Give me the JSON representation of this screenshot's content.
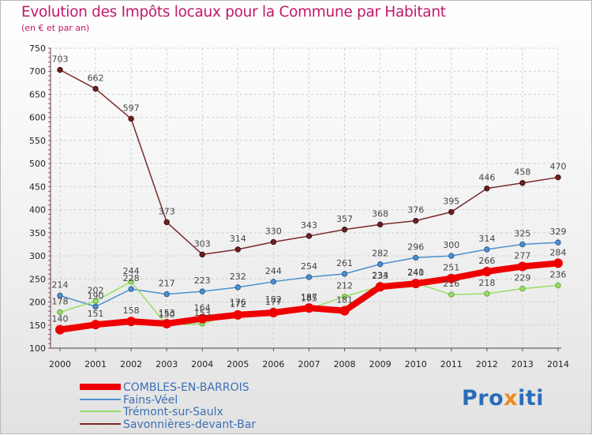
{
  "title": "Evolution des Impôts locaux pour la Commune par Habitant",
  "subtitle": "(en € et par an)",
  "logo": {
    "text_before": "Pro",
    "accent_char": "x",
    "text_after": "iti",
    "color": "#2b6cb8",
    "accent_color": "#f08a1c"
  },
  "chart_data": {
    "type": "line",
    "title": "Evolution des Impôts locaux pour la Commune par Habitant",
    "ylabel": "(en € et par an)",
    "xlabel": "",
    "ylim": [
      100,
      750
    ],
    "yticks": [
      100,
      150,
      200,
      250,
      300,
      350,
      400,
      450,
      500,
      550,
      600,
      650,
      700,
      750
    ],
    "categories": [
      "2000",
      "2001",
      "2002",
      "2003",
      "2004",
      "2005",
      "2006",
      "2007",
      "2008",
      "2009",
      "2010",
      "2011",
      "2012",
      "2013",
      "2014"
    ],
    "grid": true,
    "legend_position": "bottom-left",
    "series": [
      {
        "name": "COMBLES-EN-BARROIS",
        "color": "#ee0000",
        "values": [
          140,
          151,
          158,
          153,
          164,
          172,
          177,
          187,
          181,
          233,
          240,
          251,
          266,
          277,
          284
        ]
      },
      {
        "name": "Fains-Véel",
        "color": "#4c8fd0",
        "values": [
          214,
          190,
          228,
          217,
          223,
          232,
          244,
          254,
          261,
          282,
          296,
          300,
          314,
          325,
          329
        ]
      },
      {
        "name": "Trémont-sur-Saulx",
        "color": "#99dd66",
        "values": [
          178,
          202,
          244,
          150,
          153,
          176,
          182,
          185,
          212,
          234,
          241,
          216,
          218,
          229,
          236
        ]
      },
      {
        "name": "Savonnières-devant-Bar",
        "color": "#7a2a2a",
        "values": [
          703,
          662,
          597,
          373,
          303,
          314,
          330,
          343,
          357,
          368,
          376,
          395,
          446,
          458,
          470
        ]
      }
    ]
  }
}
